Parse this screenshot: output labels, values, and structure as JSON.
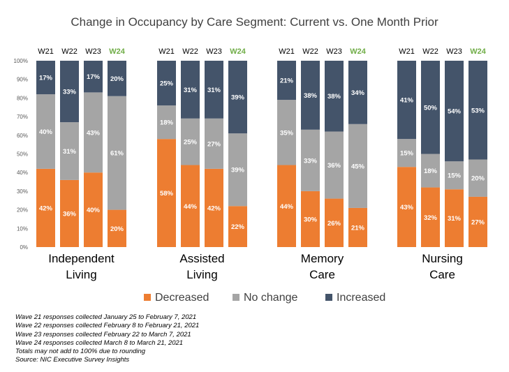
{
  "chart_data": {
    "type": "bar",
    "stacked": true,
    "normalized": true,
    "title": "Change in Occupancy by Care Segment: Current vs. One Month Prior",
    "xlabel": "",
    "ylabel": "",
    "ylim": [
      0,
      100
    ],
    "y_ticks": [
      "0%",
      "10%",
      "20%",
      "30%",
      "40%",
      "50%",
      "60%",
      "70%",
      "80%",
      "90%",
      "100%"
    ],
    "grid": false,
    "legend_position": "bottom",
    "waves": [
      "W21",
      "W22",
      "W23",
      "W24"
    ],
    "highlight_wave": "W24",
    "groups": [
      {
        "name_lines": [
          "Independent",
          "Living"
        ]
      },
      {
        "name_lines": [
          "Assisted",
          "Living"
        ]
      },
      {
        "name_lines": [
          "Memory",
          "Care"
        ]
      },
      {
        "name_lines": [
          "Nursing",
          "Care"
        ]
      }
    ],
    "series": [
      {
        "name": "Decreased",
        "color": "#ed7d31",
        "values": [
          [
            42,
            36,
            40,
            20
          ],
          [
            58,
            44,
            42,
            22
          ],
          [
            44,
            30,
            26,
            21
          ],
          [
            43,
            32,
            31,
            27
          ]
        ]
      },
      {
        "name": "No change",
        "color": "#a5a5a5",
        "values": [
          [
            40,
            31,
            43,
            61
          ],
          [
            18,
            25,
            27,
            39
          ],
          [
            35,
            33,
            36,
            45
          ],
          [
            15,
            18,
            15,
            20
          ]
        ]
      },
      {
        "name": "Increased",
        "color": "#44546a",
        "values": [
          [
            17,
            33,
            17,
            20
          ],
          [
            25,
            31,
            31,
            39
          ],
          [
            21,
            38,
            38,
            34
          ],
          [
            41,
            50,
            54,
            53
          ]
        ]
      }
    ]
  },
  "colors": {
    "highlight_label": "#70ad47",
    "wave_label": "#000000",
    "bar_label": "#ffffff"
  },
  "notes": [
    "Wave 21 responses collected January 25 to February 7, 2021",
    "Wave 22 responses collected February 8 to February 21, 2021",
    "Wave 23 responses collected February 22 to March 7, 2021",
    "Wave 24 responses collected March 8 to March 21, 2021",
    "Totals may not add to 100% due to rounding",
    "Source: NIC Executive Survey Insights"
  ]
}
